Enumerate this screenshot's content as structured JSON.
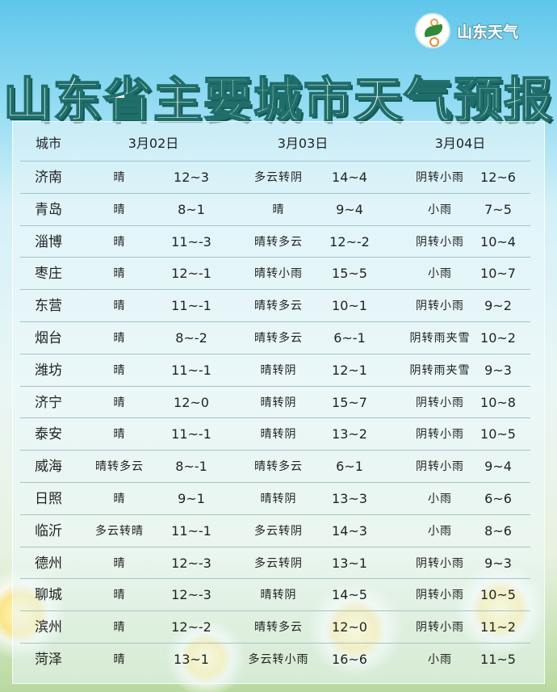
{
  "brand": {
    "name": "山东天气"
  },
  "title": "山东省主要城市天气预报",
  "table": {
    "headers": [
      "城市",
      "3月02日",
      "3月03日",
      "3月04日"
    ],
    "rows": [
      [
        "济南",
        "晴",
        "12~3",
        "多云转阴",
        "14~4",
        "阴转小雨",
        "12~6"
      ],
      [
        "青岛",
        "晴",
        "8~1",
        "晴",
        "9~4",
        "小雨",
        "7~5"
      ],
      [
        "淄博",
        "晴",
        "11~-3",
        "晴转多云",
        "12~-2",
        "阴转小雨",
        "10~4"
      ],
      [
        "枣庄",
        "晴",
        "12~-1",
        "晴转小雨",
        "15~5",
        "小雨",
        "10~7"
      ],
      [
        "东营",
        "晴",
        "11~-1",
        "晴转多云",
        "10~1",
        "阴转小雨",
        "9~2"
      ],
      [
        "烟台",
        "晴",
        "8~-2",
        "晴转多云",
        "6~-1",
        "阴转雨夹雪",
        "10~2"
      ],
      [
        "潍坊",
        "晴",
        "11~-1",
        "晴转阴",
        "12~1",
        "阴转雨夹雪",
        "9~3"
      ],
      [
        "济宁",
        "晴",
        "12~0",
        "晴转阴",
        "15~7",
        "阴转小雨",
        "10~8"
      ],
      [
        "泰安",
        "晴",
        "11~-1",
        "晴转阴",
        "13~2",
        "阴转小雨",
        "10~5"
      ],
      [
        "威海",
        "晴转多云",
        "8~-1",
        "晴转多云",
        "6~1",
        "阴转小雨",
        "9~4"
      ],
      [
        "日照",
        "晴",
        "9~1",
        "晴转阴",
        "13~3",
        "小雨",
        "6~6"
      ],
      [
        "临沂",
        "多云转晴",
        "11~-1",
        "多云转阴",
        "14~3",
        "小雨",
        "8~6"
      ],
      [
        "德州",
        "晴",
        "12~-3",
        "多云转阴",
        "13~1",
        "阴转小雨",
        "9~3"
      ],
      [
        "聊城",
        "晴",
        "12~-3",
        "晴转阴",
        "14~5",
        "阴转小雨",
        "10~5"
      ],
      [
        "滨州",
        "晴",
        "12~-2",
        "晴转多云",
        "12~0",
        "阴转小雨",
        "11~2"
      ],
      [
        "菏泽",
        "晴",
        "13~1",
        "多云转小雨",
        "16~6",
        "小雨",
        "11~5"
      ]
    ]
  }
}
